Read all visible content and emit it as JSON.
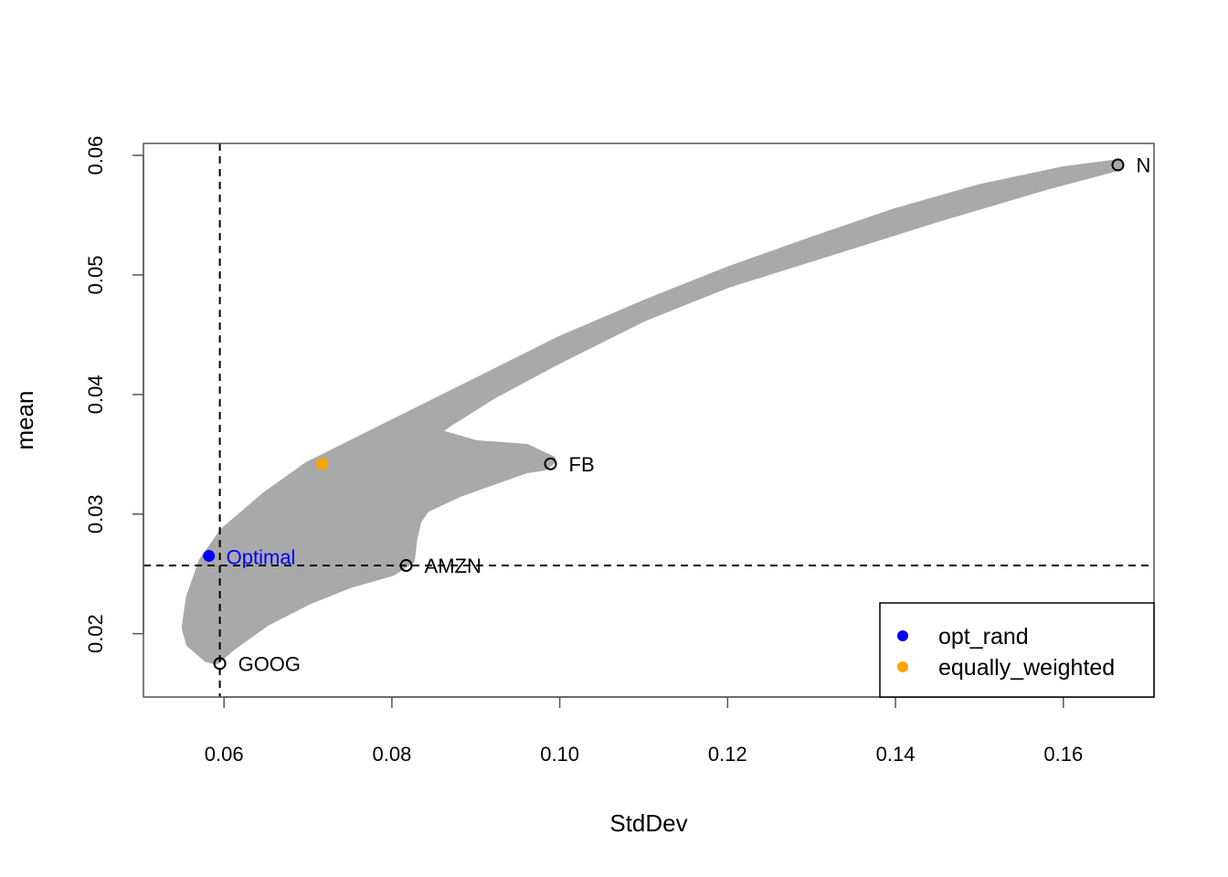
{
  "chart_data": {
    "type": "scatter",
    "title": "",
    "xlabel": "StdDev",
    "ylabel": "mean",
    "xlim": [
      0.0504,
      0.1708
    ],
    "ylim": [
      0.0147,
      0.061
    ],
    "x_ticks": [
      0.06,
      0.08,
      0.1,
      0.12,
      0.14,
      0.16
    ],
    "x_tick_labels": [
      "0.06",
      "0.08",
      "0.10",
      "0.12",
      "0.14",
      "0.16"
    ],
    "y_ticks": [
      0.02,
      0.03,
      0.04,
      0.05,
      0.06
    ],
    "y_tick_labels": [
      "0.02",
      "0.03",
      "0.04",
      "0.05",
      "0.06"
    ],
    "grid": false,
    "cloud": {
      "description_color": "#a9a9a9",
      "upper_boundary": [
        [
          0.0555,
          0.0205
        ],
        [
          0.056,
          0.023
        ],
        [
          0.0575,
          0.026
        ],
        [
          0.06,
          0.0285
        ],
        [
          0.065,
          0.0315
        ],
        [
          0.07,
          0.034
        ],
        [
          0.08,
          0.0375
        ],
        [
          0.09,
          0.041
        ],
        [
          0.1,
          0.0445
        ],
        [
          0.11,
          0.0475
        ],
        [
          0.12,
          0.0503
        ],
        [
          0.13,
          0.0528
        ],
        [
          0.14,
          0.0552
        ],
        [
          0.15,
          0.0572
        ],
        [
          0.16,
          0.0587
        ],
        [
          0.1665,
          0.0593
        ]
      ],
      "lower_boundary": [
        [
          0.1665,
          0.0591
        ],
        [
          0.158,
          0.0575
        ],
        [
          0.145,
          0.0548
        ],
        [
          0.13,
          0.0515
        ],
        [
          0.12,
          0.0493
        ],
        [
          0.11,
          0.0465
        ],
        [
          0.1,
          0.043
        ],
        [
          0.092,
          0.04
        ],
        [
          0.087,
          0.0378
        ],
        [
          0.085,
          0.0368
        ],
        [
          0.09,
          0.0358
        ],
        [
          0.096,
          0.0355
        ],
        [
          0.099,
          0.0345
        ],
        [
          0.098,
          0.034
        ],
        [
          0.096,
          0.0338
        ],
        [
          0.092,
          0.0328
        ],
        [
          0.088,
          0.0318
        ],
        [
          0.084,
          0.0305
        ],
        [
          0.083,
          0.0295
        ],
        [
          0.0825,
          0.028
        ],
        [
          0.0822,
          0.0262
        ],
        [
          0.08,
          0.0252
        ],
        [
          0.075,
          0.0242
        ],
        [
          0.07,
          0.0228
        ],
        [
          0.065,
          0.021
        ],
        [
          0.061,
          0.019
        ],
        [
          0.059,
          0.0178
        ],
        [
          0.058,
          0.018
        ],
        [
          0.056,
          0.0192
        ],
        [
          0.0555,
          0.0205
        ]
      ]
    },
    "vline_x": 0.0595,
    "hline_y": 0.0257,
    "labeled_points": [
      {
        "label": "N",
        "x": 0.1665,
        "y": 0.0592
      },
      {
        "label": "FB",
        "x": 0.0989,
        "y": 0.0342
      },
      {
        "label": "AMZN",
        "x": 0.0817,
        "y": 0.0257
      },
      {
        "label": "GOOG",
        "x": 0.0595,
        "y": 0.0175
      }
    ],
    "special_points": [
      {
        "name": "opt_rand",
        "x": 0.0582,
        "y": 0.0265,
        "color": "#0000ff",
        "label": "Optimal"
      },
      {
        "name": "equally_weighted",
        "x": 0.0717,
        "y": 0.0342,
        "color": "#ffa500"
      }
    ],
    "legend": {
      "position": "bottom-right",
      "entries": [
        {
          "label": "opt_rand",
          "color": "#0000ff"
        },
        {
          "label": "equally_weighted",
          "color": "#ffa500"
        }
      ]
    }
  }
}
